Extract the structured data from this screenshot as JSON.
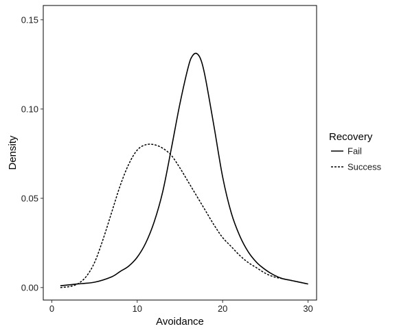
{
  "chart_data": {
    "type": "line",
    "title": "",
    "xlabel": "Avoidance",
    "ylabel": "Density",
    "xlim": [
      -1,
      31
    ],
    "ylim": [
      -0.007,
      0.158
    ],
    "x_ticks": [
      0,
      10,
      20,
      30
    ],
    "x_tick_labels": [
      "0",
      "10",
      "20",
      "30"
    ],
    "y_ticks": [
      0.0,
      0.05,
      0.1,
      0.15
    ],
    "y_tick_labels": [
      "0.00",
      "0.05",
      "0.10",
      "0.15"
    ],
    "grid": false,
    "legend": {
      "title": "Recovery",
      "position": "right"
    },
    "series": [
      {
        "name": "Fail",
        "line_style": "solid",
        "color": "#000000",
        "x": [
          1,
          3,
          5,
          7,
          8,
          9,
          10,
          11,
          12,
          13,
          14,
          15,
          16,
          16.5,
          17,
          17.5,
          18,
          19,
          20,
          21,
          22,
          23,
          24,
          25,
          26,
          27,
          28,
          30
        ],
        "y": [
          0.001,
          0.002,
          0.003,
          0.006,
          0.009,
          0.012,
          0.017,
          0.025,
          0.037,
          0.054,
          0.078,
          0.103,
          0.124,
          0.13,
          0.131,
          0.127,
          0.117,
          0.09,
          0.062,
          0.042,
          0.029,
          0.02,
          0.014,
          0.01,
          0.007,
          0.005,
          0.004,
          0.002
        ]
      },
      {
        "name": "Success",
        "line_style": "dashed",
        "color": "#000000",
        "x": [
          1,
          2,
          3,
          4,
          5,
          6,
          7,
          8,
          9,
          10,
          11,
          12,
          13,
          14,
          15,
          16,
          17,
          18,
          19,
          20,
          21,
          22,
          23,
          24,
          25,
          26,
          27,
          28,
          30
        ],
        "y": [
          0.0,
          0.0005,
          0.002,
          0.006,
          0.014,
          0.027,
          0.042,
          0.057,
          0.069,
          0.077,
          0.08,
          0.08,
          0.078,
          0.074,
          0.067,
          0.059,
          0.051,
          0.043,
          0.035,
          0.028,
          0.023,
          0.018,
          0.014,
          0.011,
          0.008,
          0.006,
          0.005,
          0.004,
          0.002
        ]
      }
    ]
  }
}
